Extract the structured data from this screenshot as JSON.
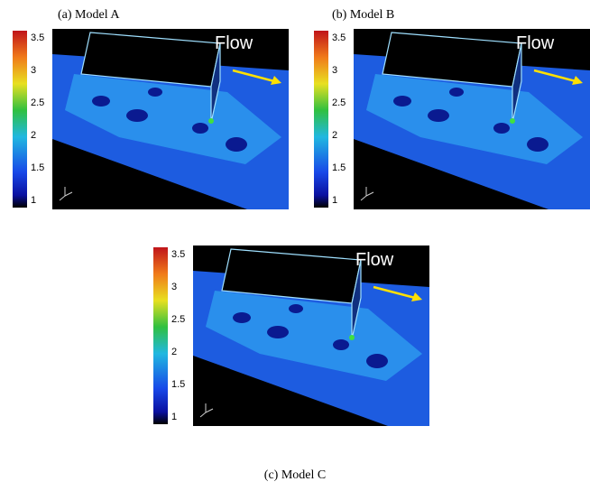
{
  "panels": [
    {
      "caption": "(a) Model A",
      "flow_label": "Flow",
      "colorbar_ticks": [
        "3.5",
        "3",
        "2.5",
        "2",
        "1.5",
        "1"
      ]
    },
    {
      "caption": "(b) Model B",
      "flow_label": "Flow",
      "colorbar_ticks": [
        "3.5",
        "3",
        "2.5",
        "2",
        "1.5",
        "1"
      ]
    },
    {
      "caption": "(c) Model C",
      "flow_label": "Flow",
      "colorbar_ticks": [
        "3.5",
        "3",
        "2.5",
        "2",
        "1.5",
        "1"
      ]
    }
  ]
}
